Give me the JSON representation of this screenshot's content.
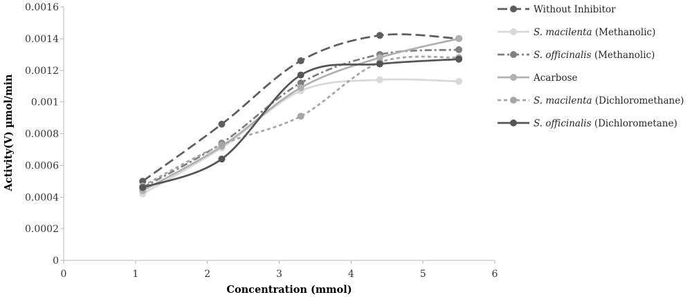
{
  "chart_data": {
    "type": "line",
    "xlabel": "Concentration (mmol)",
    "ylabel": "Activity(V) µmol/min",
    "xlim": [
      0,
      6
    ],
    "ylim": [
      0,
      0.0016
    ],
    "x_ticks": [
      "0",
      "1",
      "2",
      "3",
      "4",
      "5",
      "6"
    ],
    "y_ticks": [
      "0",
      "0.0002",
      "0.0004",
      "0.0006",
      "0.0008",
      "0.001",
      "0.0012",
      "0.0014",
      "0.0016"
    ],
    "grid": false,
    "smooth_lines": true,
    "legend_position": "right",
    "x": [
      1.1,
      2.2,
      3.3,
      4.4,
      5.5
    ],
    "series": [
      {
        "name": "Without Inhibitor",
        "color": "#5e5e5e",
        "line_style": "long-dash",
        "marker": "circle",
        "values": [
          0.0005,
          0.00086,
          0.00126,
          0.00142,
          0.0014
        ]
      },
      {
        "name": "S. macilenta (Methanolic)",
        "color": "#d9d9d9",
        "line_style": "solid",
        "marker": "circle",
        "values": [
          0.00042,
          0.00071,
          0.00107,
          0.00114,
          0.00113
        ]
      },
      {
        "name": "S. officinalis (Methanolic)",
        "color": "#7f7f7f",
        "line_style": "dash-dot",
        "marker": "circle",
        "values": [
          0.00046,
          0.00074,
          0.00112,
          0.0013,
          0.00133
        ]
      },
      {
        "name": "Acarbose",
        "color": "#b0b0b0",
        "line_style": "solid",
        "marker": "circle",
        "values": [
          0.00044,
          0.00072,
          0.00109,
          0.00128,
          0.0014
        ]
      },
      {
        "name": "S. macilenta (Dichloromethane)",
        "color": "#a5a5a5",
        "line_style": "short-dash",
        "marker": "circle",
        "values": [
          0.00047,
          0.00073,
          0.00091,
          0.00125,
          0.00128
        ]
      },
      {
        "name": "S. officinalis (Dichlorometane)",
        "color": "#555555",
        "line_style": "solid",
        "marker": "circle",
        "values": [
          0.00046,
          0.00064,
          0.00117,
          0.00124,
          0.00127
        ]
      }
    ]
  }
}
